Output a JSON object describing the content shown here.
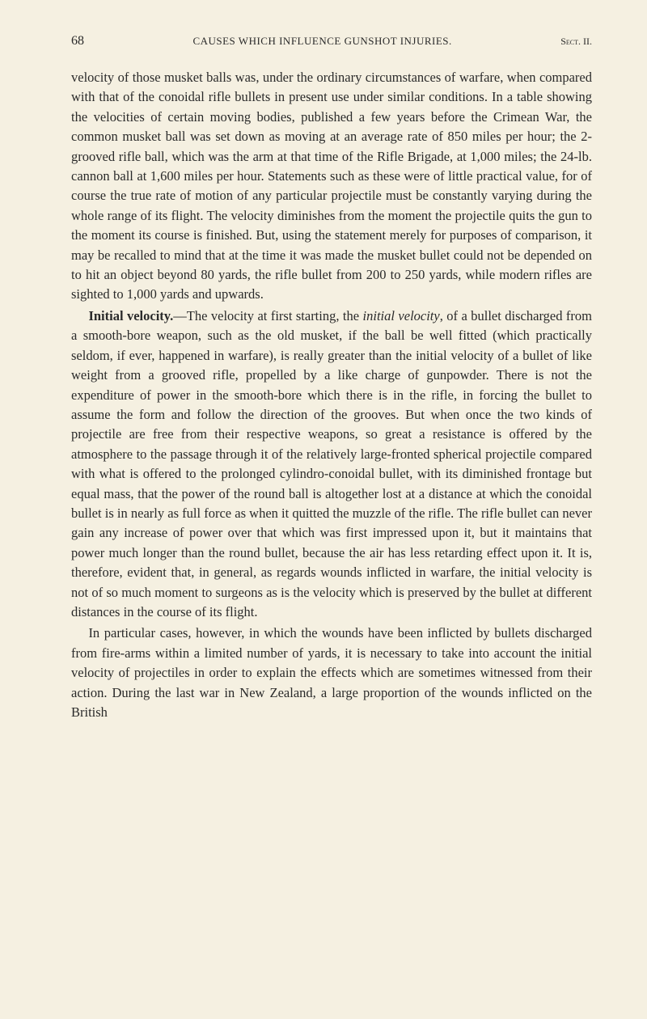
{
  "page": {
    "number": "68",
    "header_title": "CAUSES WHICH INFLUENCE GUNSHOT INJURIES.",
    "header_section": "Sect. II."
  },
  "paragraphs": {
    "p1": "velocity of those musket balls was, under the ordinary circumstances of warfare, when compared with that of the conoidal rifle bullets in present use under similar conditions. In a table showing the velocities of certain moving bodies, published a few years before the Crimean War, the common musket ball was set down as moving at an average rate of 850 miles per hour; the 2-grooved rifle ball, which was the arm at that time of the Rifle Brigade, at 1,000 miles; the 24-lb. cannon ball at 1,600 miles per hour. Statements such as these were of little practical value, for of course the true rate of motion of any particular projectile must be constantly varying during the whole range of its flight. The velocity diminishes from the moment the projectile quits the gun to the moment its course is finished. But, using the statement merely for purposes of comparison, it may be recalled to mind that at the time it was made the musket bullet could not be depended on to hit an object beyond 80 yards, the rifle bullet from 200 to 250 yards, while modern rifles are sighted to 1,000 yards and upwards.",
    "p2_label": "Initial velocity.",
    "p2_body": "—The velocity at first starting, the ",
    "p2_italic1": "initial velocity",
    "p2_body2": ", of a bullet discharged from a smooth-bore weapon, such as the old musket, if the ball be well fitted (which practically seldom, if ever, happened in warfare), is really greater than the initial velocity of a bullet of like weight from a grooved rifle, propelled by a like charge of gunpowder. There is not the expenditure of power in the smooth-bore which there is in the rifle, in forcing the bullet to assume the form and follow the direction of the grooves. But when once the two kinds of projectile are free from their respective weapons, so great a resistance is offered by the atmosphere to the passage through it of the relatively large-fronted spherical projectile compared with what is offered to the prolonged cylindro-conoidal bullet, with its diminished frontage but equal mass, that the power of the round ball is altogether lost at a distance at which the conoidal bullet is in nearly as full force as when it quitted the muzzle of the rifle. The rifle bullet can never gain any increase of power over that which was first impressed upon it, but it maintains that power much longer than the round bullet, because the air has less retarding effect upon it. It is, therefore, evident that, in general, as regards wounds inflicted in warfare, the initial velocity is not of so much moment to surgeons as is the velocity which is preserved by the bullet at different distances in the course of its flight.",
    "p3": "In particular cases, however, in which the wounds have been inflicted by bullets discharged from fire-arms within a limited number of yards, it is necessary to take into account the initial velocity of projectiles in order to explain the effects which are sometimes witnessed from their action. During the last war in New Zealand, a large proportion of the wounds inflicted on the British"
  },
  "style": {
    "background_color": "#f5f0e1",
    "text_color": "#2a2a2a",
    "body_font_size": 16.5,
    "line_height": 1.48,
    "header_font_size": 13,
    "page_number_font_size": 16,
    "font_family": "Georgia, 'Times New Roman', serif"
  }
}
